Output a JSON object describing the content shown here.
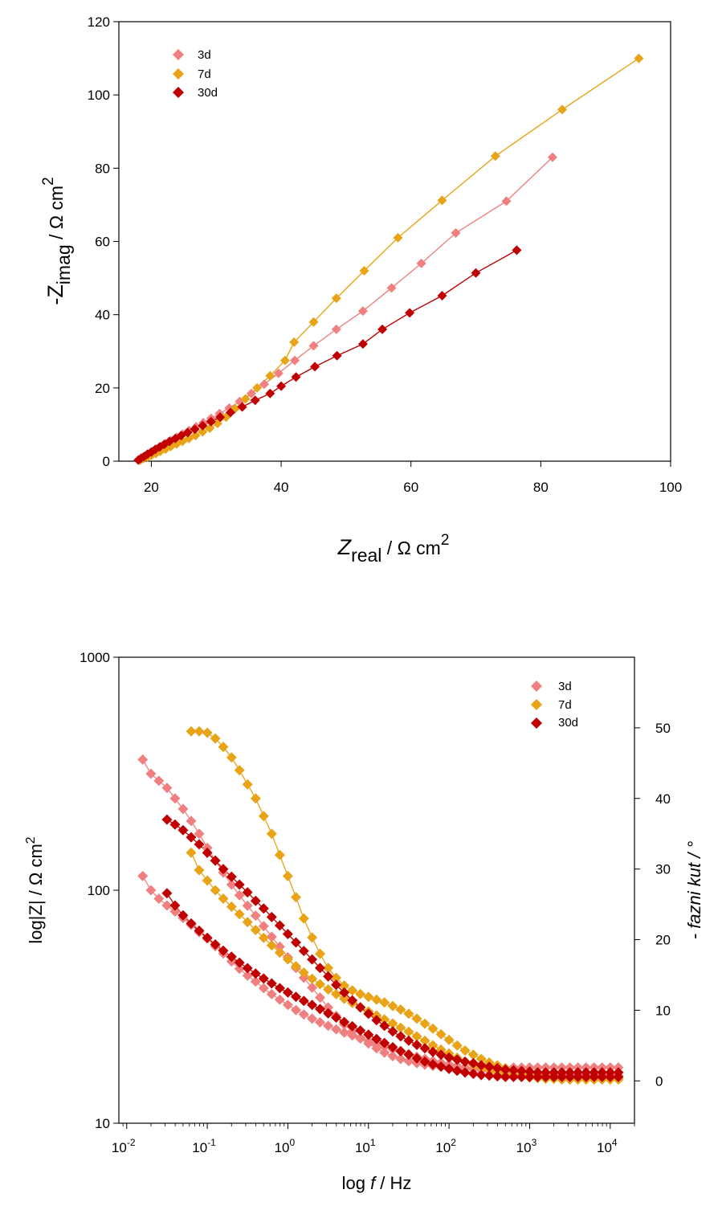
{
  "chart_data": [
    {
      "type": "scatter",
      "subtype": "nyquist",
      "xlabel": {
        "main": "Z",
        "sub": "real",
        "unit": " / Ω cm",
        "sup": "2"
      },
      "ylabel": {
        "main": "-Z",
        "sub": "imag",
        "unit": " / Ω cm",
        "sup": "2"
      },
      "xlim": [
        15,
        100
      ],
      "ylim": [
        0,
        120
      ],
      "xticks": [
        20,
        40,
        60,
        80,
        100
      ],
      "yticks": [
        0,
        20,
        40,
        60,
        80,
        100,
        120
      ],
      "grid": false,
      "legend_position": "top-left",
      "marker": "diamond",
      "fit_lines": true,
      "series": [
        {
          "name": "3d",
          "color": "#f08080",
          "x": [
            18.2,
            18.6,
            19.1,
            19.6,
            20.2,
            20.8,
            21.5,
            22.2,
            23.0,
            23.9,
            24.8,
            25.8,
            26.9,
            28.0,
            29.2,
            30.5,
            32.0,
            33.6,
            35.4,
            37.4,
            39.6,
            42.1,
            45.0,
            48.5,
            52.6,
            57.0,
            61.6,
            66.9,
            74.7,
            81.8
          ],
          "y": [
            0.4,
            0.9,
            1.4,
            2.0,
            2.6,
            3.3,
            4.0,
            4.8,
            5.6,
            6.5,
            7.4,
            8.4,
            9.4,
            10.5,
            11.7,
            13.0,
            14.5,
            16.3,
            18.5,
            21.0,
            24.0,
            27.5,
            31.5,
            36.0,
            41.0,
            47.3,
            54.0,
            62.3,
            71.0,
            83.0
          ]
        },
        {
          "name": "7d",
          "color": "#e8a317",
          "x": [
            18.3,
            18.8,
            19.4,
            20.0,
            20.7,
            21.4,
            22.2,
            23.0,
            23.9,
            24.8,
            25.8,
            26.8,
            27.9,
            29.0,
            30.2,
            31.5,
            32.9,
            34.5,
            36.3,
            38.3,
            40.6,
            42.0,
            45.0,
            48.5,
            52.8,
            58.0,
            64.8,
            73.0,
            83.3,
            95.1
          ],
          "y": [
            0.3,
            0.7,
            1.1,
            1.6,
            2.1,
            2.7,
            3.3,
            4.0,
            4.7,
            5.4,
            6.2,
            7.0,
            8.0,
            9.0,
            10.3,
            12.0,
            14.3,
            17.0,
            20.0,
            23.3,
            27.5,
            32.5,
            38.0,
            44.5,
            52.0,
            61.0,
            71.2,
            83.3,
            96.0,
            110.0
          ]
        },
        {
          "name": "30d",
          "color": "#c00000",
          "x": [
            18.0,
            18.4,
            18.9,
            19.4,
            20.0,
            20.6,
            21.3,
            22.0,
            22.8,
            23.7,
            24.6,
            25.6,
            26.7,
            27.9,
            29.2,
            30.6,
            32.2,
            34.0,
            36.0,
            38.3,
            40.0,
            42.3,
            45.2,
            48.6,
            52.6,
            55.6,
            59.8,
            64.8,
            70.0,
            76.3
          ],
          "y": [
            0.3,
            0.8,
            1.3,
            1.9,
            2.5,
            3.2,
            3.9,
            4.6,
            5.4,
            6.2,
            7.0,
            7.8,
            8.7,
            9.7,
            10.8,
            12.0,
            13.3,
            14.8,
            16.6,
            18.5,
            20.5,
            23.0,
            25.8,
            28.8,
            32.0,
            36.0,
            40.5,
            45.2,
            51.4,
            57.6
          ]
        }
      ],
      "legend": [
        "3d",
        "7d",
        "30d"
      ]
    },
    {
      "type": "scatter",
      "subtype": "bode",
      "xlabel": {
        "main": "log ",
        "italic": "f",
        "unit": " / Hz"
      },
      "ylabel_left": {
        "text": "log|Z| / Ω cm",
        "sup": "2"
      },
      "ylabel_right": {
        "text": "- fazni kut / °"
      },
      "xlim": [
        0.008,
        20000
      ],
      "x_scale": "log",
      "xticks": [
        0.01,
        0.1,
        1,
        10,
        100,
        1000,
        10000
      ],
      "xtick_labels": [
        {
          "base": "10",
          "exp": "-2"
        },
        {
          "base": "10",
          "exp": "-1"
        },
        {
          "base": "10",
          "exp": "0"
        },
        {
          "base": "10",
          "exp": "1"
        },
        {
          "base": "10",
          "exp": "2"
        },
        {
          "base": "10",
          "exp": "3"
        },
        {
          "base": "10",
          "exp": "4"
        }
      ],
      "ylim_left": [
        10,
        1000
      ],
      "y_left_scale": "log",
      "yticks_left": [
        10,
        100,
        1000
      ],
      "ylim_right": [
        -6,
        60
      ],
      "yticks_right": [
        0,
        10,
        20,
        30,
        40,
        50
      ],
      "grid": false,
      "legend_position": "top-right",
      "marker": "diamond",
      "fit_lines": true,
      "frequency_hz": [
        0.0158,
        0.02,
        0.0251,
        0.0316,
        0.0398,
        0.0501,
        0.0631,
        0.0794,
        0.1,
        0.126,
        0.158,
        0.2,
        0.251,
        0.316,
        0.398,
        0.501,
        0.631,
        0.794,
        1.0,
        1.26,
        1.58,
        2.0,
        2.51,
        3.16,
        3.98,
        5.01,
        6.31,
        7.94,
        10.0,
        12.6,
        15.8,
        20.0,
        25.1,
        31.6,
        39.8,
        50.1,
        63.1,
        79.4,
        100,
        126,
        158,
        200,
        251,
        316,
        398,
        501,
        631,
        794,
        1000,
        1260,
        1580,
        2000,
        2510,
        3160,
        3980,
        5010,
        6310,
        7940,
        10000,
        12600
      ],
      "series": [
        {
          "name": "3d",
          "color": "#f08080",
          "role": "modulus",
          "axis": "left",
          "start_index": 0,
          "values": [
            115,
            100,
            92,
            86,
            81,
            76,
            71,
            66,
            62,
            57.5,
            53.5,
            49.5,
            46,
            43,
            40.5,
            38,
            35.8,
            33.9,
            32.2,
            30.6,
            29.3,
            28.1,
            27.1,
            26.2,
            25.3,
            24.5,
            23.8,
            23.1,
            22.5,
            21.9,
            21.3,
            20.8,
            20.3,
            19.8,
            19.3,
            18.9,
            18.5,
            18.2,
            17.9,
            17.6,
            17.3,
            17.1,
            16.9,
            16.8,
            16.7,
            16.6,
            16.5,
            16.4,
            16.3,
            16.2,
            16.2,
            16.1,
            16.1,
            16.1,
            16.0,
            16.0,
            16.0,
            16.0,
            16.0,
            16.0
          ]
        },
        {
          "name": "3d",
          "color": "#f08080",
          "role": "phase",
          "axis": "right",
          "start_index": 0,
          "values": [
            45.5,
            43.5,
            42.5,
            41.5,
            40.0,
            38.5,
            36.8,
            35.0,
            33.0,
            31.2,
            29.5,
            27.8,
            26.3,
            24.8,
            23.4,
            21.9,
            20.4,
            19.0,
            17.5,
            16.0,
            14.6,
            13.2,
            11.8,
            10.4,
            9.2,
            8.0,
            7.0,
            6.1,
            5.3,
            4.6,
            4.0,
            3.5,
            3.1,
            2.8,
            2.5,
            2.3,
            2.1,
            2.0,
            1.9,
            1.8,
            1.7,
            1.7,
            1.7,
            1.7,
            1.8,
            1.8,
            1.9,
            1.9,
            1.9,
            1.9,
            1.9,
            1.9,
            1.9,
            1.9,
            1.9,
            1.9,
            1.9,
            1.9,
            1.9,
            1.9
          ]
        },
        {
          "name": "7d",
          "color": "#e8a317",
          "role": "phase",
          "axis": "right",
          "start_index": 6,
          "values": [
            49.5,
            49.5,
            49.3,
            48.5,
            47.3,
            45.8,
            44.0,
            42.0,
            40.0,
            37.5,
            35.0,
            32.0,
            29.0,
            26.0,
            23.0,
            20.3,
            18.0,
            16.0,
            14.6,
            13.5,
            12.8,
            12.3,
            11.9,
            11.5,
            11.1,
            10.6,
            10.1,
            9.5,
            8.8,
            8.1,
            7.4,
            6.6,
            5.8,
            5.0,
            4.3,
            3.7,
            3.1,
            2.6,
            2.2,
            1.8,
            1.5,
            1.2,
            1.0,
            0.8,
            0.7,
            0.6,
            0.5,
            0.5,
            0.4,
            0.4,
            0.4,
            0.4,
            0.4,
            0.4
          ]
        },
        {
          "name": "7d",
          "color": "#e8a317",
          "role": "modulus",
          "axis": "left",
          "start_index": 6,
          "values": [
            145,
            122,
            110,
            100,
            92,
            85,
            79,
            73,
            67.5,
            62.5,
            58,
            54,
            50.5,
            47.2,
            44.3,
            41.7,
            39.5,
            37.5,
            35.8,
            34.2,
            32.8,
            31.5,
            30.2,
            29.0,
            27.9,
            26.8,
            25.7,
            24.7,
            23.6,
            22.6,
            21.6,
            20.7,
            19.9,
            19.1,
            18.4,
            17.8,
            17.3,
            16.9,
            16.5,
            16.2,
            16.0,
            15.8,
            15.7,
            15.6,
            15.5,
            15.5,
            15.4,
            15.4,
            15.4,
            15.4,
            15.4,
            15.4,
            15.4,
            15.4
          ]
        },
        {
          "name": "30d",
          "color": "#c00000",
          "role": "phase",
          "axis": "right",
          "start_index": 3,
          "values": [
            37.0,
            36.3,
            35.5,
            34.5,
            33.5,
            32.3,
            31.2,
            30.0,
            28.9,
            27.8,
            26.7,
            25.5,
            24.4,
            23.2,
            22.0,
            20.8,
            19.6,
            18.4,
            17.2,
            16.0,
            14.8,
            13.6,
            12.5,
            11.4,
            10.4,
            9.5,
            8.6,
            7.8,
            7.0,
            6.3,
            5.7,
            5.1,
            4.6,
            4.1,
            3.7,
            3.3,
            3.0,
            2.7,
            2.5,
            2.2,
            2.0,
            1.8,
            1.6,
            1.5,
            1.4,
            1.3,
            1.2,
            1.2,
            1.2,
            1.2,
            1.2,
            1.2,
            1.2,
            1.2,
            1.2,
            1.2,
            1.2
          ]
        },
        {
          "name": "30d",
          "color": "#c00000",
          "role": "modulus",
          "axis": "left",
          "start_index": 3,
          "values": [
            97,
            86,
            78,
            72,
            67,
            62.5,
            58.5,
            55,
            51.8,
            48.9,
            46.3,
            43.9,
            41.8,
            39.8,
            38.0,
            36.4,
            34.9,
            33.5,
            32.2,
            30.9,
            29.6,
            28.4,
            27.2,
            26.1,
            25.0,
            24.0,
            23.0,
            22.1,
            21.2,
            20.4,
            19.7,
            19.0,
            18.4,
            17.9,
            17.5,
            17.1,
            16.8,
            16.5,
            16.3,
            16.1,
            16.0,
            15.9,
            15.8,
            15.8,
            15.8,
            15.8,
            15.8,
            15.8,
            15.8,
            15.8,
            15.8,
            15.8,
            15.8,
            15.8,
            15.8,
            15.8,
            15.8
          ]
        }
      ],
      "legend": [
        "3d",
        "7d",
        "30d"
      ]
    }
  ]
}
